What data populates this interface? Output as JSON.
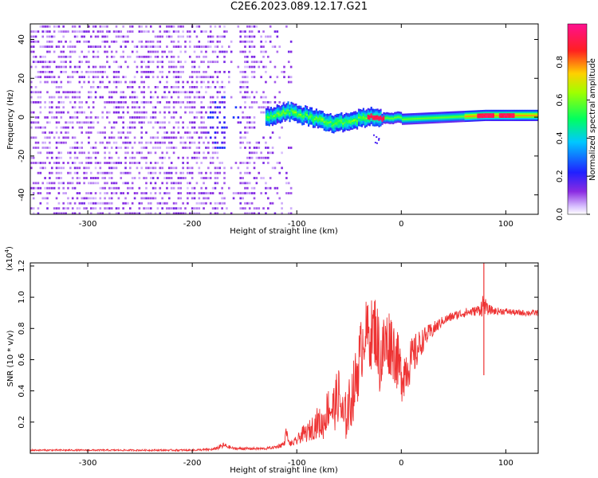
{
  "title": "C2E6.2023.089.12.17.G21",
  "chart_data": [
    {
      "type": "heatmap",
      "xlabel": "Height of straight line (km)",
      "ylabel": "Frequency (Hz)",
      "xlim": [
        -355,
        131
      ],
      "ylim": [
        -50,
        48
      ],
      "xticks": [
        -300,
        -200,
        -100,
        0,
        100
      ],
      "yticks": [
        -40,
        -20,
        0,
        20,
        40
      ],
      "colorbar": {
        "label": "Normalized spectral amplitude",
        "range": [
          0,
          1
        ],
        "ticks": [
          "0.0",
          "0.2",
          "0.4",
          "0.6",
          "0.8"
        ],
        "tick_values": [
          0,
          0.2,
          0.4,
          0.6,
          0.8
        ],
        "colormap": "rainbow (white-violet-blue-cyan-green-yellow-red-magenta)"
      },
      "features": {
        "noise_region_x": [
          -355,
          -105
        ],
        "noise_gap_x": [
          -170,
          -155
        ],
        "dense_blob": {
          "x": -170,
          "y": -4
        },
        "signal_band": [
          {
            "x": -130,
            "y": 0
          },
          {
            "x": -110,
            "y": 3
          },
          {
            "x": -95,
            "y": 1
          },
          {
            "x": -80,
            "y": -1
          },
          {
            "x": -65,
            "y": -3
          },
          {
            "x": -50,
            "y": -2
          },
          {
            "x": -35,
            "y": 0
          },
          {
            "x": -20,
            "y": 0
          },
          {
            "x": 0,
            "y": -1
          },
          {
            "x": 40,
            "y": 0
          },
          {
            "x": 80,
            "y": 1
          },
          {
            "x": 100,
            "y": 1
          },
          {
            "x": 131,
            "y": 1
          }
        ],
        "peak_spots": [
          {
            "x": -25,
            "y": 0
          },
          {
            "x": 80,
            "y": 1
          },
          {
            "x": 100,
            "y": 1
          }
        ]
      }
    },
    {
      "type": "line",
      "xlabel": "Height of straight line (km)",
      "ylabel": "SNR (10 * v/v)",
      "multiplier": "(x10",
      "multiplier_exp": "4",
      "multiplier_close": ")",
      "xlim": [
        -355,
        131
      ],
      "ylim": [
        0,
        1.22
      ],
      "xticks": [
        -300,
        -200,
        -100,
        0,
        100
      ],
      "yticks": [
        0.2,
        0.4,
        0.6,
        0.8,
        1.0,
        1.2
      ],
      "ytick_labels": [
        "0.2",
        "0.4",
        "0.6",
        "0.8",
        "1.0",
        "1.2"
      ],
      "color": "#ee3333",
      "series": [
        {
          "x": [
            -355,
            -300,
            -250,
            -200,
            -180,
            -170,
            -165,
            -160,
            -150,
            -140,
            -130,
            -120,
            -112,
            -110,
            -108,
            -105,
            -100,
            -95,
            -90,
            -80,
            -75,
            -70,
            -65,
            -60,
            -55,
            -50,
            -45,
            -40,
            -35,
            -30,
            -25,
            -20,
            -15,
            -10,
            -5,
            0,
            5,
            10,
            15,
            20,
            25,
            30,
            40,
            50,
            60,
            70,
            75,
            78,
            80,
            82,
            85,
            90,
            100,
            110,
            120,
            131
          ],
          "y": [
            0.02,
            0.02,
            0.02,
            0.02,
            0.025,
            0.05,
            0.04,
            0.03,
            0.03,
            0.03,
            0.03,
            0.04,
            0.06,
            0.15,
            0.07,
            0.06,
            0.08,
            0.12,
            0.13,
            0.2,
            0.18,
            0.3,
            0.28,
            0.38,
            0.2,
            0.3,
            0.42,
            0.6,
            0.78,
            0.75,
            0.8,
            0.6,
            0.7,
            0.72,
            0.62,
            0.5,
            0.55,
            0.6,
            0.66,
            0.72,
            0.76,
            0.79,
            0.85,
            0.88,
            0.9,
            0.91,
            0.92,
            0.95,
            0.95,
            0.92,
            0.92,
            0.91,
            0.91,
            0.9,
            0.9,
            0.9
          ],
          "noise": [
            0.005,
            0.005,
            0.005,
            0.006,
            0.008,
            0.02,
            0.012,
            0.008,
            0.008,
            0.008,
            0.008,
            0.01,
            0.02,
            0.03,
            0.02,
            0.02,
            0.03,
            0.05,
            0.06,
            0.1,
            0.1,
            0.14,
            0.16,
            0.18,
            0.16,
            0.18,
            0.2,
            0.22,
            0.2,
            0.22,
            0.24,
            0.26,
            0.24,
            0.22,
            0.2,
            0.18,
            0.16,
            0.14,
            0.12,
            0.08,
            0.06,
            0.05,
            0.03,
            0.03,
            0.03,
            0.03,
            0.04,
            0.08,
            0.06,
            0.04,
            0.03,
            0.025,
            0.02,
            0.02,
            0.02,
            0.02
          ]
        }
      ],
      "spikes": [
        {
          "x": 79,
          "y_min": 0.5,
          "y_max": 1.22
        }
      ]
    }
  ]
}
